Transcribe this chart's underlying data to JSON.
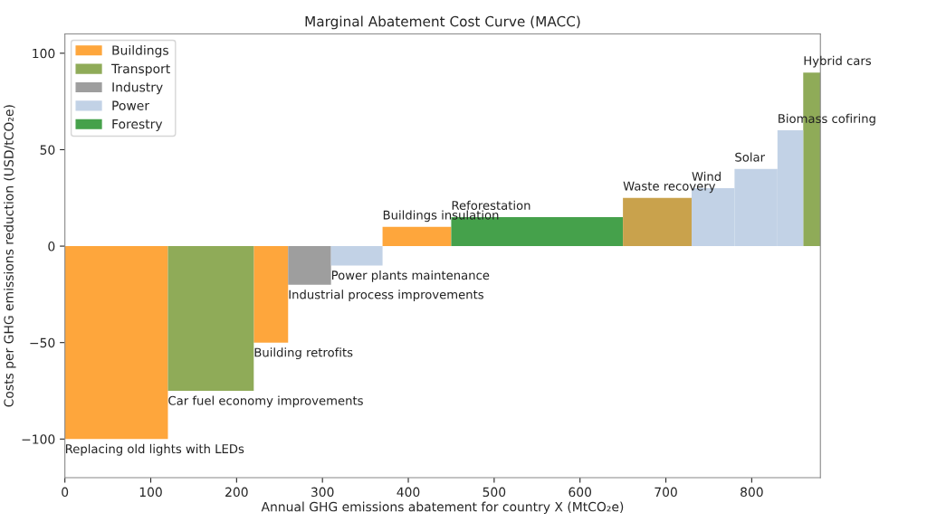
{
  "chart_data": {
    "type": "histogram",
    "title": "Marginal Abatement Cost Curve (MACC)",
    "xlabel": "Annual GHG emissions abatement for country X (MtCO₂e)",
    "ylabel": "Costs per GHG emissions reduction (USD/tCO₂e)",
    "bins": [
      0,
      120,
      220,
      260,
      310,
      370,
      450,
      650,
      730,
      780,
      830,
      860,
      880
    ],
    "series": [
      {
        "name": "Buildings",
        "color": "#fea63c",
        "values": [
          -100,
          null,
          -50,
          null,
          null,
          10,
          null,
          null,
          null,
          null,
          null,
          null
        ]
      },
      {
        "name": "Transport",
        "color": "#8fab58",
        "values": [
          null,
          -75,
          null,
          null,
          null,
          null,
          null,
          null,
          null,
          null,
          null,
          90
        ]
      },
      {
        "name": "Industry",
        "color": "#9e9e9e",
        "values": [
          null,
          null,
          null,
          -20,
          null,
          null,
          null,
          null,
          null,
          null,
          null,
          null
        ]
      },
      {
        "name": "Power",
        "color": "#c2d2e6",
        "values": [
          null,
          null,
          null,
          null,
          -10,
          null,
          null,
          null,
          30,
          40,
          60,
          null
        ]
      },
      {
        "name": "Forestry",
        "color": "#45a14b",
        "values": [
          null,
          null,
          null,
          null,
          null,
          null,
          15,
          null,
          null,
          null,
          null,
          null
        ]
      },
      {
        "color": "#c9a24c",
        "values": [
          null,
          null,
          null,
          null,
          null,
          null,
          null,
          25,
          null,
          null,
          null,
          null
        ]
      }
    ],
    "annotations": [
      {
        "text": "Replacing old lights with LEDs",
        "x": 0,
        "y": -100
      },
      {
        "text": "Car fuel economy improvements",
        "x": 120,
        "y": -75
      },
      {
        "text": "Building retrofits",
        "x": 220,
        "y": -50
      },
      {
        "text": "Industrial process improvements",
        "x": 260,
        "y": -20
      },
      {
        "text": "Power plants maintenance",
        "x": 310,
        "y": -10
      },
      {
        "text": "Buildings insulation",
        "x": 370,
        "y": 10
      },
      {
        "text": "Reforestation",
        "x": 450,
        "y": 15
      },
      {
        "text": "Waste recovery",
        "x": 650,
        "y": 25
      },
      {
        "text": "Wind",
        "x": 730,
        "y": 30
      },
      {
        "text": "Solar",
        "x": 780,
        "y": 40
      },
      {
        "text": "Biomass cofiring",
        "x": 830,
        "y": 60
      },
      {
        "text": "Hybrid cars",
        "x": 860,
        "y": 90
      }
    ],
    "xlim": [
      0,
      880
    ],
    "xticks": [
      0,
      100,
      200,
      300,
      400,
      500,
      600,
      700,
      800
    ],
    "ylim": [
      -120,
      110
    ],
    "yticks": [
      -100,
      -50,
      0,
      50,
      100
    ],
    "grid": false,
    "legend": "top left"
  }
}
